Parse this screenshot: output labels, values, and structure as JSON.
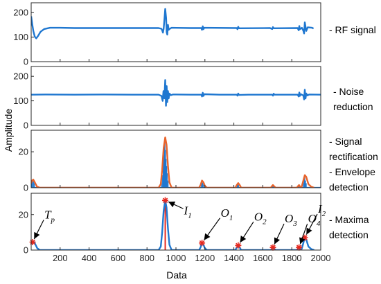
{
  "figure": {
    "xlabel": "Data",
    "ylabel": "Amplitude",
    "xlim": [
      0,
      2000
    ],
    "xticks": [
      200,
      400,
      600,
      800,
      1000,
      1200,
      1400,
      1600,
      1800,
      2000
    ],
    "colors": {
      "blue": "#1f77d0",
      "orange": "#e8632b",
      "red": "#e5291f",
      "axis": "#262626"
    }
  },
  "chart_data": [
    {
      "type": "line",
      "panel": 1,
      "label_lines": [
        "- RF signal"
      ],
      "ylim": [
        0,
        240
      ],
      "yticks": [
        0,
        100,
        200
      ],
      "series": [
        {
          "color": "blue",
          "points": [
            [
              0,
              185
            ],
            [
              8,
              150
            ],
            [
              15,
              125
            ],
            [
              25,
              102
            ],
            [
              35,
              95
            ],
            [
              48,
              105
            ],
            [
              65,
              122
            ],
            [
              90,
              133
            ],
            [
              130,
              138
            ],
            [
              200,
              138
            ],
            [
              300,
              137
            ],
            [
              500,
              137
            ],
            [
              700,
              137
            ],
            [
              880,
              137
            ],
            [
              900,
              134
            ],
            [
              905,
              128
            ],
            [
              910,
              118
            ],
            [
              915,
              133
            ],
            [
              920,
              170
            ],
            [
              926,
              215
            ],
            [
              932,
              178
            ],
            [
              936,
              120
            ],
            [
              940,
              110
            ],
            [
              945,
              150
            ],
            [
              950,
              130
            ],
            [
              958,
              134
            ],
            [
              970,
              138
            ],
            [
              1100,
              137
            ],
            [
              1175,
              137
            ],
            [
              1180,
              130
            ],
            [
              1185,
              144
            ],
            [
              1190,
              132
            ],
            [
              1195,
              138
            ],
            [
              1420,
              137
            ],
            [
              1425,
              132
            ],
            [
              1430,
              142
            ],
            [
              1435,
              136
            ],
            [
              1650,
              137
            ],
            [
              1665,
              133
            ],
            [
              1670,
              141
            ],
            [
              1675,
              136
            ],
            [
              1840,
              137
            ],
            [
              1848,
              128
            ],
            [
              1852,
              145
            ],
            [
              1856,
              132
            ],
            [
              1870,
              138
            ],
            [
              1880,
              126
            ],
            [
              1885,
              115
            ],
            [
              1890,
              160
            ],
            [
              1895,
              142
            ],
            [
              1900,
              125
            ],
            [
              1910,
              140
            ],
            [
              1940,
              138
            ],
            [
              1950,
              135
            ]
          ]
        }
      ]
    },
    {
      "type": "line",
      "panel": 2,
      "label_lines": [
        "- Noise",
        "reduction"
      ],
      "ylim": [
        0,
        240
      ],
      "yticks": [
        0,
        100,
        200
      ],
      "series": [
        {
          "color": "blue",
          "points": [
            [
              0,
              125
            ],
            [
              100,
              126
            ],
            [
              300,
              125
            ],
            [
              500,
              126
            ],
            [
              700,
              125
            ],
            [
              880,
              125
            ],
            [
              900,
              120
            ],
            [
              908,
              100
            ],
            [
              914,
              140
            ],
            [
              920,
              110
            ],
            [
              926,
              185
            ],
            [
              931,
              80
            ],
            [
              936,
              160
            ],
            [
              940,
              95
            ],
            [
              945,
              140
            ],
            [
              950,
              110
            ],
            [
              955,
              130
            ],
            [
              965,
              123
            ],
            [
              980,
              126
            ],
            [
              1100,
              125
            ],
            [
              1175,
              125
            ],
            [
              1180,
              118
            ],
            [
              1185,
              133
            ],
            [
              1190,
              120
            ],
            [
              1196,
              127
            ],
            [
              1300,
              125
            ],
            [
              1420,
              125
            ],
            [
              1425,
              121
            ],
            [
              1430,
              130
            ],
            [
              1435,
              124
            ],
            [
              1500,
              125
            ],
            [
              1665,
              125
            ],
            [
              1670,
              121
            ],
            [
              1675,
              129
            ],
            [
              1680,
              125
            ],
            [
              1840,
              125
            ],
            [
              1848,
              118
            ],
            [
              1852,
              134
            ],
            [
              1856,
              120
            ],
            [
              1862,
              127
            ],
            [
              1880,
              122
            ],
            [
              1885,
              106
            ],
            [
              1890,
              145
            ],
            [
              1895,
              110
            ],
            [
              1900,
              130
            ],
            [
              1908,
              122
            ],
            [
              1920,
              126
            ],
            [
              2000,
              125
            ]
          ]
        }
      ]
    },
    {
      "type": "line",
      "panel": 3,
      "label_lines": [
        "- Signal",
        "rectification",
        "- Envelope",
        "detection"
      ],
      "ylim": [
        0,
        32
      ],
      "yticks": [
        0,
        20
      ],
      "series": [
        {
          "color": "orange",
          "points": [
            [
              0,
              2.5
            ],
            [
              6,
              4
            ],
            [
              15,
              4.5
            ],
            [
              25,
              3
            ],
            [
              40,
              0.6
            ],
            [
              60,
              0
            ],
            [
              880,
              0
            ],
            [
              895,
              2
            ],
            [
              905,
              10
            ],
            [
              915,
              22
            ],
            [
              926,
              28
            ],
            [
              935,
              24
            ],
            [
              945,
              12
            ],
            [
              955,
              3
            ],
            [
              970,
              0
            ],
            [
              1160,
              0
            ],
            [
              1170,
              1.5
            ],
            [
              1180,
              4
            ],
            [
              1190,
              3
            ],
            [
              1200,
              1
            ],
            [
              1215,
              0
            ],
            [
              1410,
              0
            ],
            [
              1420,
              1.5
            ],
            [
              1430,
              2.6
            ],
            [
              1440,
              1.5
            ],
            [
              1450,
              0
            ],
            [
              1655,
              0
            ],
            [
              1662,
              0.8
            ],
            [
              1670,
              1.5
            ],
            [
              1678,
              0.8
            ],
            [
              1688,
              0
            ],
            [
              1835,
              0
            ],
            [
              1842,
              0.8
            ],
            [
              1850,
              1.5
            ],
            [
              1858,
              0.5
            ],
            [
              1865,
              0
            ],
            [
              1870,
              1
            ],
            [
              1880,
              4
            ],
            [
              1890,
              7
            ],
            [
              1900,
              6
            ],
            [
              1915,
              2
            ],
            [
              1935,
              0.5
            ],
            [
              1955,
              0
            ]
          ]
        }
      ],
      "spikes": [
        [
          4,
          3
        ],
        [
          10,
          4
        ],
        [
          16,
          3.5
        ],
        [
          22,
          2.5
        ],
        [
          900,
          3
        ],
        [
          906,
          7
        ],
        [
          912,
          14
        ],
        [
          916,
          18
        ],
        [
          920,
          23
        ],
        [
          924,
          26
        ],
        [
          928,
          21
        ],
        [
          932,
          16
        ],
        [
          936,
          12
        ],
        [
          940,
          8
        ],
        [
          946,
          4
        ],
        [
          1176,
          2
        ],
        [
          1180,
          3.5
        ],
        [
          1185,
          2.8
        ],
        [
          1190,
          1.8
        ],
        [
          1424,
          1.5
        ],
        [
          1428,
          2.2
        ],
        [
          1432,
          1.6
        ],
        [
          1668,
          1
        ],
        [
          1672,
          1.2
        ],
        [
          1848,
          1
        ],
        [
          1852,
          1.2
        ],
        [
          1880,
          3
        ],
        [
          1886,
          5
        ],
        [
          1890,
          6.5
        ],
        [
          1895,
          4
        ],
        [
          1900,
          2.5
        ]
      ]
    },
    {
      "type": "line",
      "panel": 4,
      "label_lines": [
        "- Maxima",
        "detection"
      ],
      "ylim": [
        0,
        32
      ],
      "yticks": [
        0,
        20
      ],
      "series": [
        {
          "color": "blue",
          "points": [
            [
              0,
              3.5
            ],
            [
              10,
              4.5
            ],
            [
              20,
              4.5
            ],
            [
              30,
              3
            ],
            [
              42,
              1
            ],
            [
              60,
              0
            ],
            [
              880,
              0
            ],
            [
              895,
              2
            ],
            [
              905,
              10
            ],
            [
              915,
              22
            ],
            [
              926,
              28
            ],
            [
              935,
              24
            ],
            [
              945,
              12
            ],
            [
              955,
              3
            ],
            [
              970,
              0
            ],
            [
              1160,
              0
            ],
            [
              1170,
              1.5
            ],
            [
              1180,
              4
            ],
            [
              1190,
              3
            ],
            [
              1200,
              1
            ],
            [
              1215,
              0
            ],
            [
              1410,
              0
            ],
            [
              1420,
              1.5
            ],
            [
              1430,
              2.6
            ],
            [
              1440,
              1.5
            ],
            [
              1450,
              0
            ],
            [
              1655,
              0
            ],
            [
              1662,
              0.8
            ],
            [
              1670,
              1.5
            ],
            [
              1678,
              0.8
            ],
            [
              1688,
              0
            ],
            [
              1835,
              0
            ],
            [
              1842,
              0.8
            ],
            [
              1850,
              1.5
            ],
            [
              1858,
              0.5
            ],
            [
              1865,
              0
            ],
            [
              1870,
              1
            ],
            [
              1880,
              4
            ],
            [
              1890,
              7
            ],
            [
              1900,
              6
            ],
            [
              1915,
              2
            ],
            [
              1935,
              0.5
            ],
            [
              1955,
              0
            ]
          ]
        }
      ],
      "red_line_x": 926,
      "maxima": [
        {
          "x": 10,
          "y": 4.5
        },
        {
          "x": 926,
          "y": 28
        },
        {
          "x": 1180,
          "y": 4
        },
        {
          "x": 1430,
          "y": 2.6
        },
        {
          "x": 1670,
          "y": 1.5
        },
        {
          "x": 1850,
          "y": 1.5
        },
        {
          "x": 1890,
          "y": 7
        }
      ],
      "annotations": [
        {
          "base": "T",
          "sub": "p",
          "x": 10,
          "y": 4.5
        },
        {
          "base": "I",
          "sub": "1",
          "x": 926,
          "y": 28
        },
        {
          "base": "O",
          "sub": "1",
          "x": 1180,
          "y": 4
        },
        {
          "base": "O",
          "sub": "2",
          "x": 1430,
          "y": 2.6
        },
        {
          "base": "O",
          "sub": "3",
          "x": 1670,
          "y": 1.5
        },
        {
          "base": "O",
          "sub": "4",
          "x": 1850,
          "y": 1.5
        },
        {
          "base": "I",
          "sub": "2",
          "x": 1890,
          "y": 7
        }
      ]
    }
  ]
}
